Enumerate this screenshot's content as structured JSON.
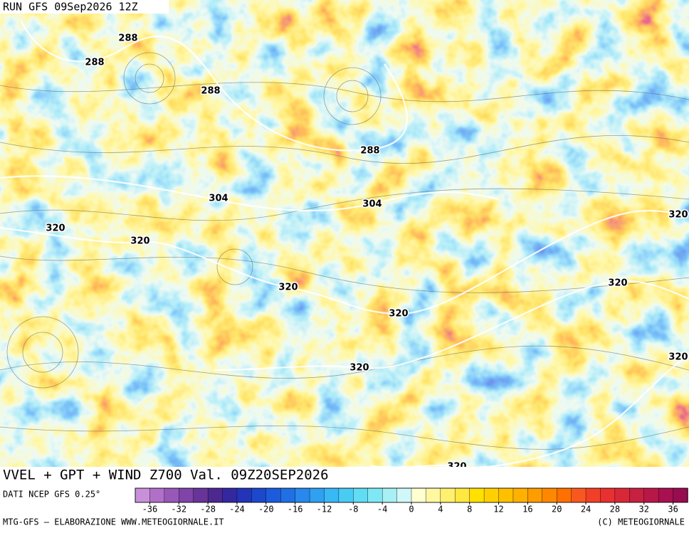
{
  "header": {
    "run": "RUN GFS 09Sep2026 12Z"
  },
  "contour_labels": [
    288,
    288,
    288,
    288,
    304,
    304,
    320,
    320,
    320,
    320,
    320,
    320,
    320,
    320,
    320
  ],
  "footer": {
    "title": "VVEL + GPT + WIND Z700 Val. 09Z20SEP2026",
    "source": "DATI NCEP GFS 0.25°",
    "credit_left": "MTG-GFS — ELABORAZIONE WWW.METEOGIORNALE.IT",
    "credit_right": "(C) METEOGIORNALE"
  },
  "colorbar": {
    "range": [
      -38,
      38
    ],
    "ticks": [
      -36,
      -32,
      -28,
      -24,
      -20,
      -16,
      -12,
      -8,
      -4,
      0,
      4,
      8,
      12,
      16,
      20,
      24,
      28,
      32,
      36
    ],
    "colors": [
      "#c890d8",
      "#b070c8",
      "#9858b8",
      "#8044a8",
      "#683498",
      "#4c2890",
      "#3428a0",
      "#2434b8",
      "#1c48cc",
      "#1c5cdc",
      "#2070e4",
      "#2888ec",
      "#30a0f0",
      "#38b8f4",
      "#48ccf4",
      "#60dcf4",
      "#80e8f4",
      "#a8f0f4",
      "#d0f8f8",
      "#ffffd0",
      "#fff8a0",
      "#fff070",
      "#ffe840",
      "#ffe000",
      "#ffd000",
      "#ffc000",
      "#ffb000",
      "#ff9c00",
      "#ff8800",
      "#ff7000",
      "#f85820",
      "#f04028",
      "#e83030",
      "#d82838",
      "#c82040",
      "#b81848",
      "#a81050",
      "#980c50"
    ]
  }
}
